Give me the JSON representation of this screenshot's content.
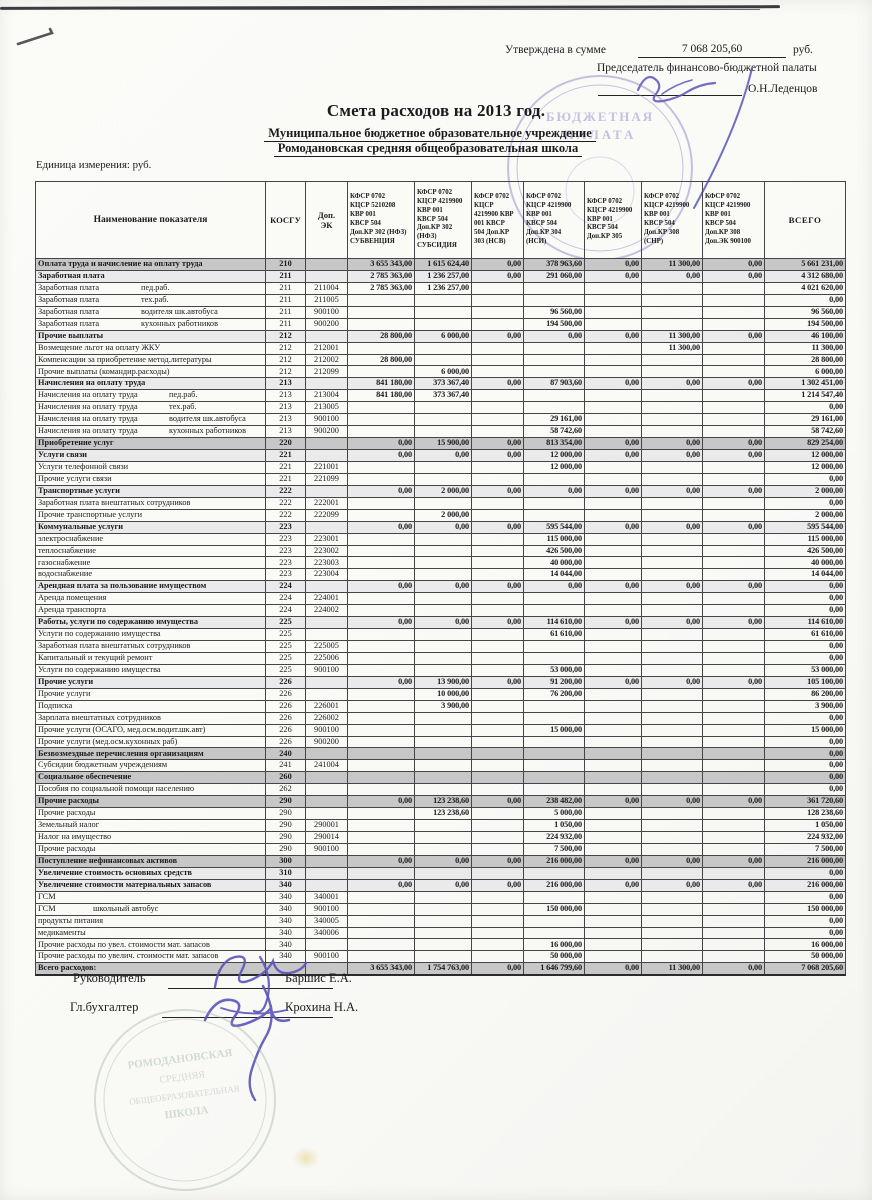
{
  "header": {
    "approved_label": "Утверждена в сумме",
    "approved_sum": "7 068 205,60",
    "approved_currency": "руб.",
    "chairman_title": "Председатель финансово-бюджетной палаты",
    "chairman_name": "О.Н.Леденцов"
  },
  "title": {
    "main": "Смета расходов на 2013 год.",
    "org1": "Муниципальное бюджетное образовательное учреждение",
    "org2": "Ромодановская   средняя общеобразовательная школа",
    "unit": "Единица измерения: руб."
  },
  "stamps": {
    "top": [
      "БЮДЖЕТНАЯ",
      "ПАЛАТА"
    ],
    "bottom": [
      "РОМОДАНОВСКАЯ",
      "СРЕДНЯЯ",
      "ОБЩЕОБРАЗОВАТЕЛЬНАЯ",
      "ШКОЛА"
    ]
  },
  "footer": {
    "director_label": "Руководитель",
    "director_name": "Баршис  Е.А.",
    "accountant_label": "Гл.бухгалтер",
    "accountant_name": "Крохина Н.А."
  },
  "table": {
    "headers": {
      "name": "Наименование показателя",
      "kosgu": "КОСГУ",
      "dopek": "Доп.\nЭК",
      "cols": [
        "КФСР 0702\nКЦСР 5210208\nКВР 001\nКВСР 504\nДоп.КР 302 (НФЗ)\nСУБВЕНЦИЯ",
        "КФСР 0702\nКЦСР 4219900\nКВР 001\nКВСР 504\nДоп.КР 302\n(НФЗ)\nСУБСИДИЯ",
        "КФСР 0702\nКЦСР\n4219900 КВР\n001  КВСР\n504  Доп.КР\n303  (НСВ)",
        "КФСР 0702\nКЦСР 4219900\nКВР 001\nКВСР 504\nДоп.КР 304\n(НСИ)",
        "КФСР 0702\nКЦСР 4219900\nКВР 001\nКВСР 504\nДоп.КР 305",
        "КФСР 0702\nКЦСР 4219900\nКВР 001\nКВСР 504\nДоп.КР 308\n(СНР)",
        "КФСР 0702\nКЦСР 4219900\nКВР 001\nКВСР 504\nДоп.КР 308\nДоп.ЭК 900100"
      ],
      "total": "ВСЕГО"
    },
    "rows": [
      {
        "label": "Оплата труда  и начисление на оплату  труда",
        "kosgu": "210",
        "v": [
          "3 655 343,00",
          "1 615 624,40",
          "0,00",
          "378 963,60",
          "0,00",
          "11 300,00",
          "0,00"
        ],
        "total": "5 661 231,00",
        "style": "s1"
      },
      {
        "label": "Заработная плата",
        "kosgu": "211",
        "v": [
          "2 785 363,00",
          "1 236 257,00",
          "0,00",
          "291 060,00",
          "0,00",
          "0,00",
          "0,00"
        ],
        "total": "4 312 680,00",
        "style": "s2"
      },
      {
        "label": "Заработная  плата",
        "sub": "пед.раб.",
        "subx": 105,
        "kosgu": "211",
        "dop": "211004",
        "v": [
          "2 785 363,00",
          "1 236 257,00",
          "",
          "",
          "",
          "",
          ""
        ],
        "total": "4 021 620,00"
      },
      {
        "label": "Заработная  плата",
        "sub": "тех.раб.",
        "subx": 105,
        "kosgu": "211",
        "dop": "211005",
        "total": "0,00"
      },
      {
        "label": "Заработная  плата",
        "sub": "водителя шк.автобуса",
        "subx": 105,
        "kosgu": "211",
        "dop": "900100",
        "v": [
          "",
          "",
          "",
          "96 560,00",
          "",
          "",
          ""
        ],
        "total": "96 560,00"
      },
      {
        "label": "Заработная  плата",
        "sub": "кухонных работников",
        "subx": 105,
        "kosgu": "211",
        "dop": "900200",
        "v": [
          "",
          "",
          "",
          "194 500,00",
          "",
          "",
          ""
        ],
        "total": "194 500,00"
      },
      {
        "label": "Прочие  выплаты",
        "kosgu": "212",
        "v": [
          "28 800,00",
          "6 000,00",
          "0,00",
          "0,00",
          "0,00",
          "11 300,00",
          "0,00"
        ],
        "total": "46 100,00",
        "style": "s2"
      },
      {
        "label": "Возмещение льгот на оплату ЖКУ",
        "kosgu": "212",
        "dop": "212001",
        "v": [
          "",
          "",
          "",
          "",
          "",
          "11 300,00",
          ""
        ],
        "total": "11 300,00"
      },
      {
        "label": "Компенсации за приобретение метод.литературы",
        "kosgu": "212",
        "dop": "212002",
        "v": [
          "28 800,00",
          "",
          "",
          "",
          "",
          "",
          ""
        ],
        "total": "28 800,00"
      },
      {
        "label": "Прочие выплаты (командир.расходы)",
        "kosgu": "212",
        "dop": "212099",
        "v": [
          "",
          "6 000,00",
          "",
          "",
          "",
          "",
          ""
        ],
        "total": "6 000,00"
      },
      {
        "label": "Начисления на оплату труда",
        "kosgu": "213",
        "v": [
          "841 180,00",
          "373 367,40",
          "0,00",
          "87 903,60",
          "0,00",
          "0,00",
          "0,00"
        ],
        "total": "1 302 451,00",
        "style": "s2"
      },
      {
        "label": "Начисления  на оплату труда",
        "sub": "пед.раб.",
        "subx": 133,
        "kosgu": "213",
        "dop": "213004",
        "v": [
          "841 180,00",
          "373 367,40",
          "",
          "",
          "",
          "",
          ""
        ],
        "total": "1 214 547,40"
      },
      {
        "label": "Начисления  на оплату труда",
        "sub": "тех.раб.",
        "subx": 133,
        "kosgu": "213",
        "dop": "213005",
        "total": "0,00"
      },
      {
        "label": "Начисления  на оплату труда",
        "sub": "водителя шк.автобуса",
        "subx": 133,
        "kosgu": "213",
        "dop": "900100",
        "v": [
          "",
          "",
          "",
          "29 161,00",
          "",
          "",
          ""
        ],
        "total": "29 161,00"
      },
      {
        "label": "Начисления  на оплату труда",
        "sub": "кухонных работников",
        "subx": 133,
        "kosgu": "213",
        "dop": "900200",
        "v": [
          "",
          "",
          "",
          "58 742,60",
          "",
          "",
          ""
        ],
        "total": "58 742,60"
      },
      {
        "label": "Приобретение  услуг",
        "kosgu": "220",
        "v": [
          "0,00",
          "15 900,00",
          "0,00",
          "813 354,00",
          "0,00",
          "0,00",
          "0,00"
        ],
        "total": "829 254,00",
        "style": "s1"
      },
      {
        "label": "Услуги  связи",
        "kosgu": "221",
        "v": [
          "0,00",
          "0,00",
          "0,00",
          "12 000,00",
          "0,00",
          "0,00",
          "0,00"
        ],
        "total": "12 000,00",
        "style": "s2"
      },
      {
        "label": "Услуги  телефонной связи",
        "kosgu": "221",
        "dop": "221001",
        "v": [
          "",
          "",
          "",
          "12 000,00",
          "",
          "",
          ""
        ],
        "total": "12 000,00"
      },
      {
        "label": "Прочие услуги связи",
        "kosgu": "221",
        "dop": "221099",
        "total": "0,00"
      },
      {
        "label": "Транспортные  услуги",
        "kosgu": "222",
        "v": [
          "0,00",
          "2 000,00",
          "0,00",
          "0,00",
          "0,00",
          "0,00",
          "0,00"
        ],
        "total": "2 000,00",
        "style": "s2"
      },
      {
        "label": "Заработная плата внештатных сотрудников",
        "kosgu": "222",
        "dop": "222001",
        "total": "0,00"
      },
      {
        "label": "Прочие транспортные услуги",
        "kosgu": "222",
        "dop": "222099",
        "v": [
          "",
          "2 000,00",
          "",
          "",
          "",
          "",
          ""
        ],
        "total": "2 000,00"
      },
      {
        "label": "Коммунальные  услуги",
        "kosgu": "223",
        "v": [
          "0,00",
          "0,00",
          "0,00",
          "595 544,00",
          "0,00",
          "0,00",
          "0,00"
        ],
        "total": "595 544,00",
        "style": "s2"
      },
      {
        "label": "электроснабжение",
        "kosgu": "223",
        "dop": "223001",
        "v": [
          "",
          "",
          "",
          "115 000,00",
          "",
          "",
          ""
        ],
        "total": "115 000,00"
      },
      {
        "label": "теплоснабжение",
        "kosgu": "223",
        "dop": "223002",
        "v": [
          "",
          "",
          "",
          "426 500,00",
          "",
          "",
          ""
        ],
        "total": "426 500,00"
      },
      {
        "label": "газоснабжение",
        "kosgu": "223",
        "dop": "223003",
        "v": [
          "",
          "",
          "",
          "40 000,00",
          "",
          "",
          ""
        ],
        "total": "40 000,00"
      },
      {
        "label": "водоснабжение",
        "kosgu": "223",
        "dop": "223004",
        "v": [
          "",
          "",
          "",
          "14 044,00",
          "",
          "",
          ""
        ],
        "total": "14 044,00"
      },
      {
        "label": "Арендная плата за пользование имуществом",
        "kosgu": "224",
        "v": [
          "0,00",
          "0,00",
          "0,00",
          "0,00",
          "0,00",
          "0,00",
          "0,00"
        ],
        "total": "0,00",
        "style": "s2"
      },
      {
        "label": "Аренда помещения",
        "kosgu": "224",
        "dop": "224001",
        "total": "0,00"
      },
      {
        "label": "Аренда транспорта",
        "kosgu": "224",
        "dop": "224002",
        "total": "0,00"
      },
      {
        "label": "Работы, услуги по содержанию имущества",
        "kosgu": "225",
        "v": [
          "0,00",
          "0,00",
          "0,00",
          "114 610,00",
          "0,00",
          "0,00",
          "0,00"
        ],
        "total": "114 610,00",
        "style": "s2"
      },
      {
        "label": "Услуги по содержанию имущества",
        "kosgu": "225",
        "v": [
          "",
          "",
          "",
          "61 610,00",
          "",
          "",
          ""
        ],
        "total": "61 610,00"
      },
      {
        "label": "Заработная плата внештатных сотрудников",
        "kosgu": "225",
        "dop": "225005",
        "total": "0,00"
      },
      {
        "label": "Капитальный и текущий ремонт",
        "kosgu": "225",
        "dop": "225006",
        "total": "0,00"
      },
      {
        "label": "Услуги по содержанию имущества",
        "kosgu": "225",
        "dop": "900100",
        "v": [
          "",
          "",
          "",
          "53 000,00",
          "",
          "",
          ""
        ],
        "total": "53 000,00"
      },
      {
        "label": "Прочие  услуги",
        "kosgu": "226",
        "v": [
          "0,00",
          "13 900,00",
          "0,00",
          "91 200,00",
          "0,00",
          "0,00",
          "0,00"
        ],
        "total": "105 100,00",
        "style": "s2"
      },
      {
        "label": "Прочие услуги",
        "kosgu": "226",
        "v": [
          "",
          "10 000,00",
          "",
          "76 200,00",
          "",
          "",
          ""
        ],
        "total": "86 200,00"
      },
      {
        "label": "Подписка",
        "kosgu": "226",
        "dop": "226001",
        "v": [
          "",
          "3 900,00",
          "",
          "",
          "",
          "",
          ""
        ],
        "total": "3 900,00"
      },
      {
        "label": "Зарплата внештатных сотрудников",
        "kosgu": "226",
        "dop": "226002",
        "total": "0,00"
      },
      {
        "label": "Прочие услуги (ОСАГО, мед.осм.водит.шк.авт)",
        "kosgu": "226",
        "dop": "900100",
        "v": [
          "",
          "",
          "",
          "15 000,00",
          "",
          "",
          ""
        ],
        "total": "15 000,00"
      },
      {
        "label": "Прочие услуги (мед.осм.кухонных раб)",
        "kosgu": "226",
        "dop": "900200",
        "total": "0,00"
      },
      {
        "label": "Безвозмездные перечисления организациям",
        "kosgu": "240",
        "total": "0,00",
        "style": "s1"
      },
      {
        "label": "Субсидии бюджетным учреждениям",
        "kosgu": "241",
        "dop": "241004",
        "total": "0,00"
      },
      {
        "label": "Социальное обеспечение",
        "kosgu": "260",
        "total": "0,00",
        "style": "s1"
      },
      {
        "label": "Пособия по социальной помощи населению",
        "kosgu": "262",
        "total": "0,00"
      },
      {
        "label": "Прочие расходы",
        "kosgu": "290",
        "v": [
          "0,00",
          "123 238,60",
          "0,00",
          "238 482,00",
          "0,00",
          "0,00",
          "0,00"
        ],
        "total": "361 720,60",
        "style": "s1"
      },
      {
        "label": "Прочие расходы",
        "kosgu": "290",
        "v": [
          "",
          "123 238,60",
          "",
          "5 000,00",
          "",
          "",
          ""
        ],
        "total": "128 238,60"
      },
      {
        "label": "Земельный налог",
        "kosgu": "290",
        "dop": "290001",
        "v": [
          "",
          "",
          "",
          "1 050,00",
          "",
          "",
          ""
        ],
        "total": "1 050,00"
      },
      {
        "label": "Налог на имущество",
        "kosgu": "290",
        "dop": "290014",
        "v": [
          "",
          "",
          "",
          "224 932,00",
          "",
          "",
          ""
        ],
        "total": "224 932,00"
      },
      {
        "label": "Прочие расходы",
        "kosgu": "290",
        "dop": "900100",
        "v": [
          "",
          "",
          "",
          "7 500,00",
          "",
          "",
          ""
        ],
        "total": "7 500,00"
      },
      {
        "label": "Поступление нефинансовых активов",
        "kosgu": "300",
        "v": [
          "0,00",
          "0,00",
          "0,00",
          "216 000,00",
          "0,00",
          "0,00",
          "0,00"
        ],
        "total": "216 000,00",
        "style": "s1"
      },
      {
        "label": "Увеличение стоимость основных средств",
        "kosgu": "310",
        "total": "0,00",
        "style": "s2"
      },
      {
        "label": "Увеличение стоимости  материальных запасов",
        "kosgu": "340",
        "v": [
          "0,00",
          "0,00",
          "0,00",
          "216 000,00",
          "0,00",
          "0,00",
          "0,00"
        ],
        "total": "216 000,00",
        "style": "s2"
      },
      {
        "label": "ГСМ",
        "kosgu": "340",
        "dop": "340001",
        "total": "0,00"
      },
      {
        "label": "ГСМ",
        "sub": "школьный автобус",
        "subx": 57,
        "kosgu": "340",
        "dop": "900100",
        "v": [
          "",
          "",
          "",
          "150 000,00",
          "",
          "",
          ""
        ],
        "total": "150 000,00"
      },
      {
        "label": "продукты питания",
        "kosgu": "340",
        "dop": "340005",
        "total": "0,00"
      },
      {
        "label": "медикаменты",
        "kosgu": "340",
        "dop": "340006",
        "total": "0,00"
      },
      {
        "label": "Прочие расходы по увел. стоимости мат. запасов",
        "kosgu": "340",
        "v": [
          "",
          "",
          "",
          "16 000,00",
          "",
          "",
          ""
        ],
        "total": "16 000,00"
      },
      {
        "label": "Прочие расходы по увелич. стоимости мат. запасов",
        "kosgu": "340",
        "dop": "900100",
        "v": [
          "",
          "",
          "",
          "50 000,00",
          "",
          "",
          ""
        ],
        "total": "50 000,00"
      },
      {
        "label": "Всего  расходов:",
        "kosgu": "",
        "v": [
          "3 655 343,00",
          "1 754 763,00",
          "0,00",
          "1 646 799,60",
          "0,00",
          "11 300,00",
          "0,00"
        ],
        "total": "7 068 205,60",
        "style": "s1 last"
      }
    ]
  }
}
